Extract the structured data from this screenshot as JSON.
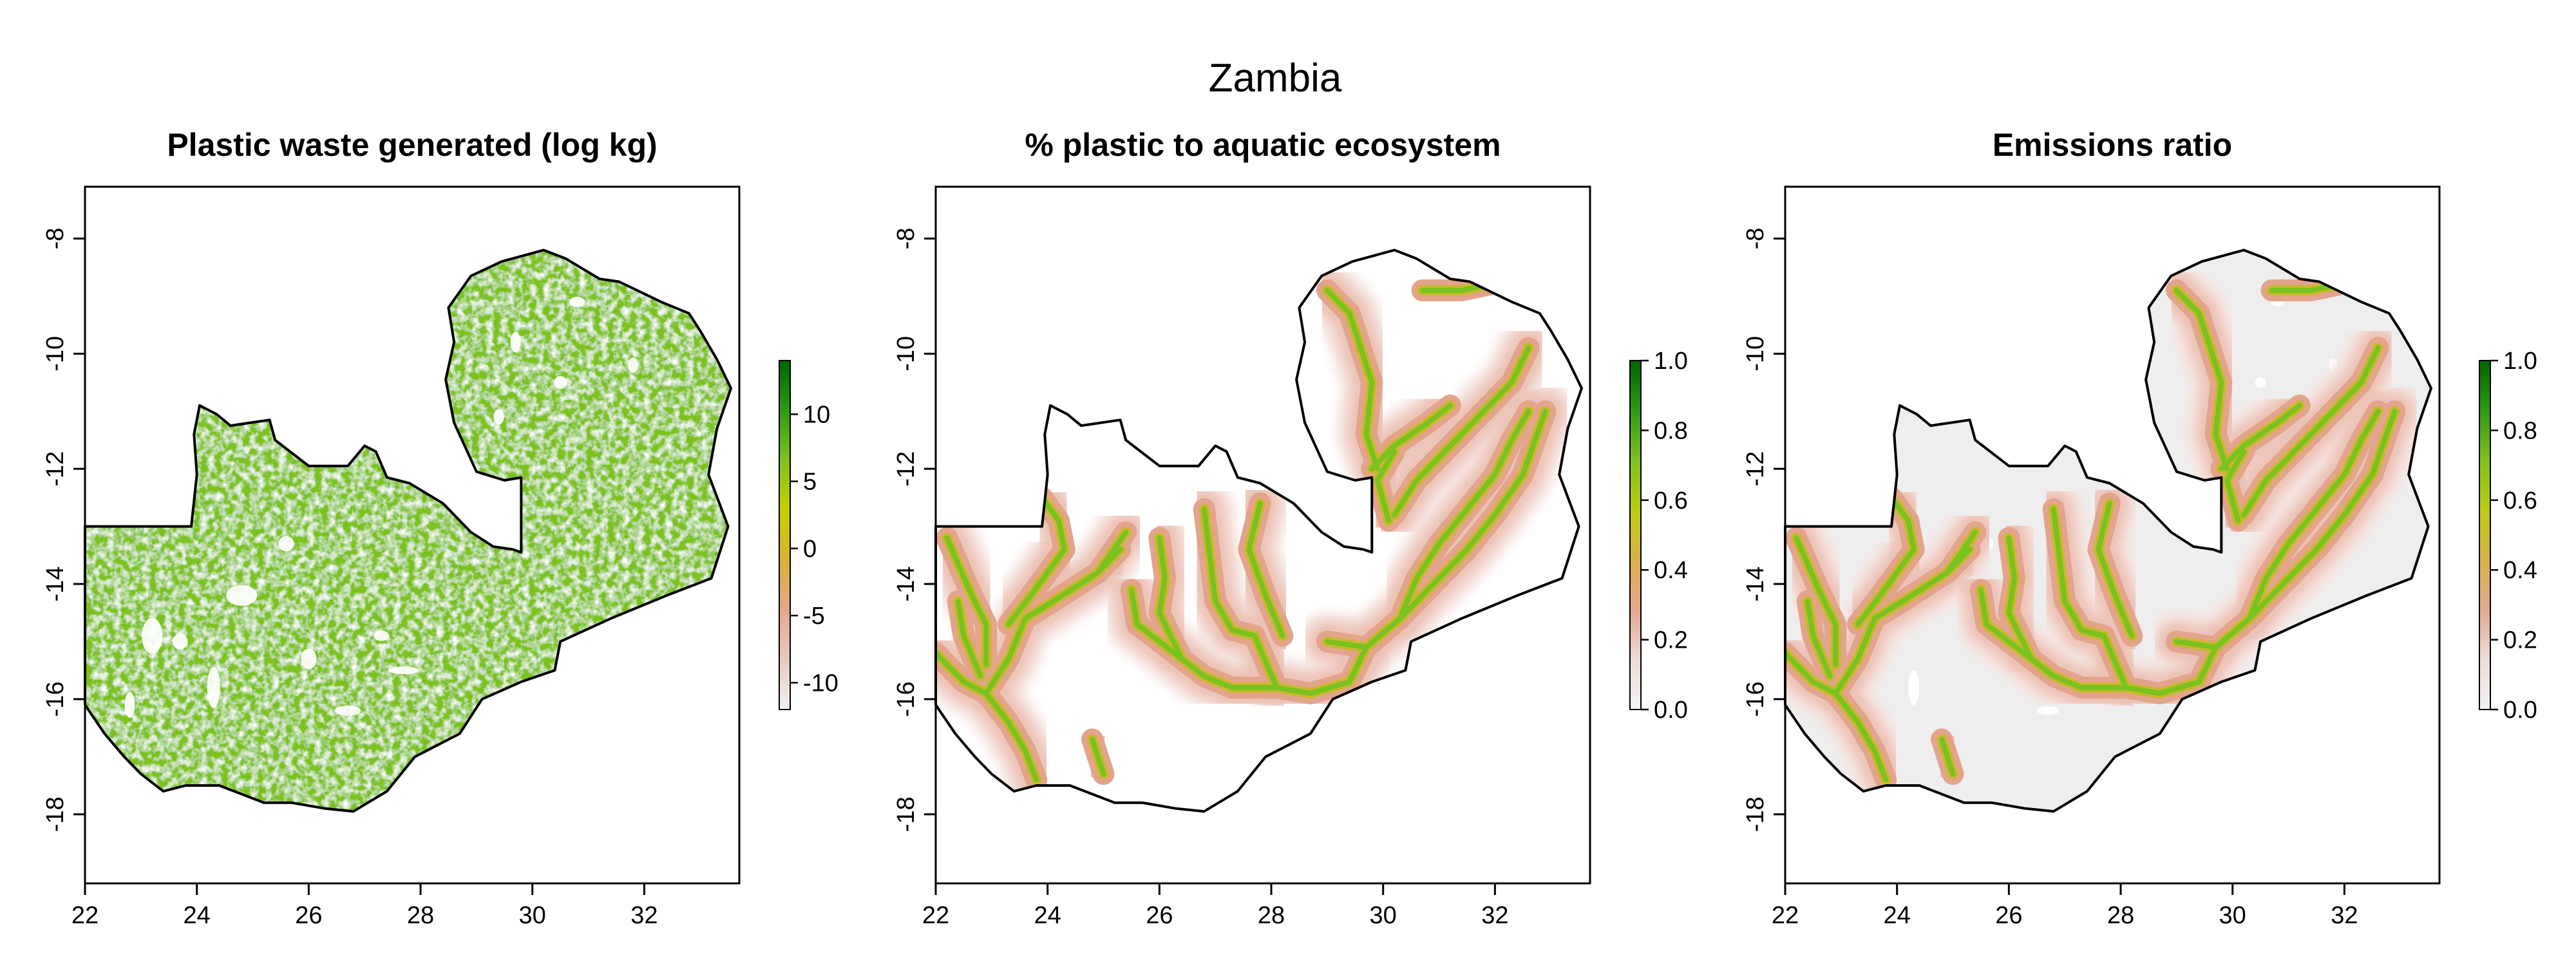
{
  "title": "Zambia",
  "panels": [
    {
      "id": "waste",
      "title": "Plastic waste generated (log kg)",
      "fill_style": "waste",
      "colorbar": {
        "min": -12,
        "max": 14,
        "ticks": [
          -10,
          -5,
          0,
          5,
          10
        ],
        "colors": [
          "#f2f2f2",
          "#e8c9c0",
          "#e3a88e",
          "#d8b233",
          "#c8d000",
          "#7fc11f",
          "#2e9a14",
          "#006400"
        ]
      }
    },
    {
      "id": "aquatic",
      "title": "% plastic to aquatic ecosystem",
      "fill_style": "rivers",
      "colorbar": {
        "min": 0,
        "max": 1,
        "ticks": [
          "0.0",
          "0.2",
          "0.4",
          "0.6",
          "0.8",
          "1.0"
        ],
        "colors": [
          "#f2f2f2",
          "#eddcd8",
          "#e3a890",
          "#d9b04a",
          "#bccc10",
          "#7fc11f",
          "#2e9a14",
          "#006400"
        ]
      }
    },
    {
      "id": "emissions",
      "title": "Emissions ratio",
      "fill_style": "emissions",
      "colorbar": {
        "min": 0,
        "max": 1,
        "ticks": [
          "0.0",
          "0.2",
          "0.4",
          "0.6",
          "0.8",
          "1.0"
        ],
        "colors": [
          "#f2f2f2",
          "#eddcd8",
          "#e3a890",
          "#d9b04a",
          "#bccc10",
          "#7fc11f",
          "#2e9a14",
          "#006400"
        ]
      }
    }
  ],
  "axes": {
    "x_ticks": [
      22,
      24,
      26,
      28,
      30,
      32
    ],
    "y_ticks": [
      -8,
      -10,
      -12,
      -14,
      -16,
      -18
    ],
    "xlim": [
      22,
      33.7
    ],
    "ylim": [
      -19.2,
      -7.1
    ]
  },
  "map_data": {
    "country": "Zambia",
    "boundary_lonlat": [
      [
        22.0,
        -13.0
      ],
      [
        23.9,
        -13.0
      ],
      [
        24.0,
        -12.1
      ],
      [
        23.95,
        -11.4
      ],
      [
        24.05,
        -10.9
      ],
      [
        24.35,
        -11.05
      ],
      [
        24.6,
        -11.25
      ],
      [
        25.3,
        -11.15
      ],
      [
        25.4,
        -11.5
      ],
      [
        26.0,
        -11.95
      ],
      [
        26.7,
        -11.95
      ],
      [
        27.0,
        -11.6
      ],
      [
        27.2,
        -11.7
      ],
      [
        27.4,
        -12.15
      ],
      [
        27.8,
        -12.25
      ],
      [
        28.4,
        -12.6
      ],
      [
        28.9,
        -13.1
      ],
      [
        29.3,
        -13.35
      ],
      [
        29.65,
        -13.4
      ],
      [
        29.8,
        -13.45
      ],
      [
        29.8,
        -12.15
      ],
      [
        29.5,
        -12.2
      ],
      [
        29.0,
        -12.05
      ],
      [
        28.6,
        -11.2
      ],
      [
        28.45,
        -10.45
      ],
      [
        28.6,
        -9.8
      ],
      [
        28.5,
        -9.2
      ],
      [
        28.9,
        -8.65
      ],
      [
        29.45,
        -8.4
      ],
      [
        30.2,
        -8.2
      ],
      [
        30.6,
        -8.35
      ],
      [
        31.2,
        -8.7
      ],
      [
        31.55,
        -8.75
      ],
      [
        32.3,
        -9.1
      ],
      [
        32.8,
        -9.3
      ],
      [
        33.0,
        -9.6
      ],
      [
        33.3,
        -10.1
      ],
      [
        33.55,
        -10.6
      ],
      [
        33.3,
        -11.3
      ],
      [
        33.15,
        -12.1
      ],
      [
        33.5,
        -13.0
      ],
      [
        33.2,
        -13.9
      ],
      [
        32.4,
        -14.2
      ],
      [
        31.4,
        -14.6
      ],
      [
        30.5,
        -15.0
      ],
      [
        30.4,
        -15.5
      ],
      [
        29.8,
        -15.7
      ],
      [
        29.1,
        -16.0
      ],
      [
        28.7,
        -16.6
      ],
      [
        27.9,
        -17.0
      ],
      [
        27.4,
        -17.6
      ],
      [
        26.8,
        -17.95
      ],
      [
        26.3,
        -17.9
      ],
      [
        25.7,
        -17.8
      ],
      [
        25.2,
        -17.8
      ],
      [
        24.4,
        -17.5
      ],
      [
        23.8,
        -17.5
      ],
      [
        23.4,
        -17.6
      ],
      [
        23.0,
        -17.3
      ],
      [
        22.7,
        -17.0
      ],
      [
        22.35,
        -16.6
      ],
      [
        22.0,
        -16.1
      ]
    ],
    "rivers_lonlat": [
      [
        [
          22.0,
          -15.2
        ],
        [
          22.5,
          -15.7
        ],
        [
          22.9,
          -15.9
        ],
        [
          23.3,
          -16.4
        ],
        [
          23.6,
          -16.9
        ],
        [
          23.8,
          -17.4
        ]
      ],
      [
        [
          22.2,
          -13.2
        ],
        [
          22.6,
          -14.1
        ],
        [
          22.9,
          -14.7
        ],
        [
          22.9,
          -15.4
        ]
      ],
      [
        [
          22.9,
          -15.9
        ],
        [
          23.3,
          -15.3
        ],
        [
          23.6,
          -14.6
        ],
        [
          24.1,
          -14.3
        ],
        [
          24.9,
          -13.8
        ],
        [
          25.4,
          -13.1
        ]
      ],
      [
        [
          23.3,
          -14.7
        ],
        [
          23.7,
          -14.2
        ],
        [
          24.3,
          -13.4
        ]
      ],
      [
        [
          24.3,
          -13.4
        ],
        [
          24.2,
          -12.9
        ],
        [
          23.9,
          -12.5
        ]
      ],
      [
        [
          24.9,
          -13.8
        ],
        [
          25.3,
          -13.4
        ]
      ],
      [
        [
          25.5,
          -14.1
        ],
        [
          25.6,
          -14.7
        ],
        [
          26.0,
          -15.0
        ],
        [
          26.4,
          -15.3
        ],
        [
          26.8,
          -15.6
        ],
        [
          27.3,
          -15.8
        ],
        [
          28.1,
          -15.8
        ],
        [
          28.7,
          -15.9
        ],
        [
          29.4,
          -15.7
        ],
        [
          29.7,
          -15.1
        ]
      ],
      [
        [
          26.0,
          -13.2
        ],
        [
          26.1,
          -13.9
        ],
        [
          26.0,
          -14.5
        ],
        [
          26.4,
          -15.3
        ]
      ],
      [
        [
          26.8,
          -12.7
        ],
        [
          26.9,
          -13.5
        ],
        [
          27.0,
          -14.3
        ],
        [
          27.3,
          -14.8
        ],
        [
          27.7,
          -14.9
        ],
        [
          28.1,
          -15.8
        ]
      ],
      [
        [
          27.8,
          -12.6
        ],
        [
          27.6,
          -13.4
        ],
        [
          27.9,
          -14.2
        ],
        [
          28.2,
          -14.9
        ]
      ],
      [
        [
          29.0,
          -15.0
        ],
        [
          29.7,
          -15.1
        ],
        [
          30.3,
          -14.6
        ],
        [
          30.9,
          -14.0
        ],
        [
          31.5,
          -13.4
        ],
        [
          32.0,
          -12.8
        ],
        [
          32.5,
          -12.1
        ],
        [
          32.9,
          -11.0
        ]
      ],
      [
        [
          30.3,
          -14.6
        ],
        [
          30.6,
          -13.9
        ],
        [
          31.0,
          -13.3
        ],
        [
          31.5,
          -12.7
        ],
        [
          32.0,
          -12.1
        ],
        [
          32.3,
          -11.5
        ],
        [
          32.6,
          -11.0
        ]
      ],
      [
        [
          30.2,
          -12.8
        ],
        [
          30.6,
          -12.2
        ],
        [
          31.2,
          -11.6
        ],
        [
          31.8,
          -11.0
        ],
        [
          32.3,
          -10.5
        ],
        [
          32.6,
          -9.9
        ]
      ],
      [
        [
          29.0,
          -8.9
        ],
        [
          29.4,
          -9.3
        ],
        [
          29.6,
          -9.9
        ],
        [
          29.8,
          -10.5
        ],
        [
          29.7,
          -11.4
        ],
        [
          29.9,
          -12.0
        ]
      ],
      [
        [
          29.8,
          -12.0
        ],
        [
          30.2,
          -11.6
        ],
        [
          30.8,
          -11.2
        ],
        [
          31.2,
          -10.9
        ]
      ],
      [
        [
          30.1,
          -12.9
        ],
        [
          29.9,
          -12.2
        ],
        [
          30.2,
          -11.7
        ]
      ],
      [
        [
          30.7,
          -8.9
        ],
        [
          31.4,
          -8.9
        ],
        [
          31.9,
          -8.8
        ]
      ],
      [
        [
          24.8,
          -16.7
        ],
        [
          25.0,
          -17.3
        ]
      ],
      [
        [
          22.4,
          -14.3
        ],
        [
          22.5,
          -14.9
        ],
        [
          22.8,
          -15.6
        ]
      ]
    ],
    "blank_patches_lonlat": [
      [
        24.8,
        -14.2,
        0.6,
        0.4
      ],
      [
        23.2,
        -14.9,
        0.4,
        0.7
      ],
      [
        26.7,
        -16.2,
        0.5,
        0.2
      ],
      [
        26.0,
        -15.3,
        0.3,
        0.4
      ],
      [
        24.3,
        -15.8,
        0.25,
        0.8
      ],
      [
        29.4,
        -11.1,
        0.2,
        0.3
      ],
      [
        27.7,
        -15.5,
        0.6,
        0.15
      ],
      [
        29.7,
        -9.8,
        0.2,
        0.4
      ],
      [
        30.8,
        -9.1,
        0.3,
        0.2
      ],
      [
        25.6,
        -13.3,
        0.3,
        0.3
      ],
      [
        22.8,
        -16.1,
        0.2,
        0.5
      ],
      [
        23.7,
        -15.0,
        0.3,
        0.3
      ],
      [
        30.5,
        -10.5,
        0.25,
        0.25
      ],
      [
        31.8,
        -10.2,
        0.2,
        0.3
      ],
      [
        27.3,
        -14.9,
        0.3,
        0.2
      ]
    ]
  }
}
